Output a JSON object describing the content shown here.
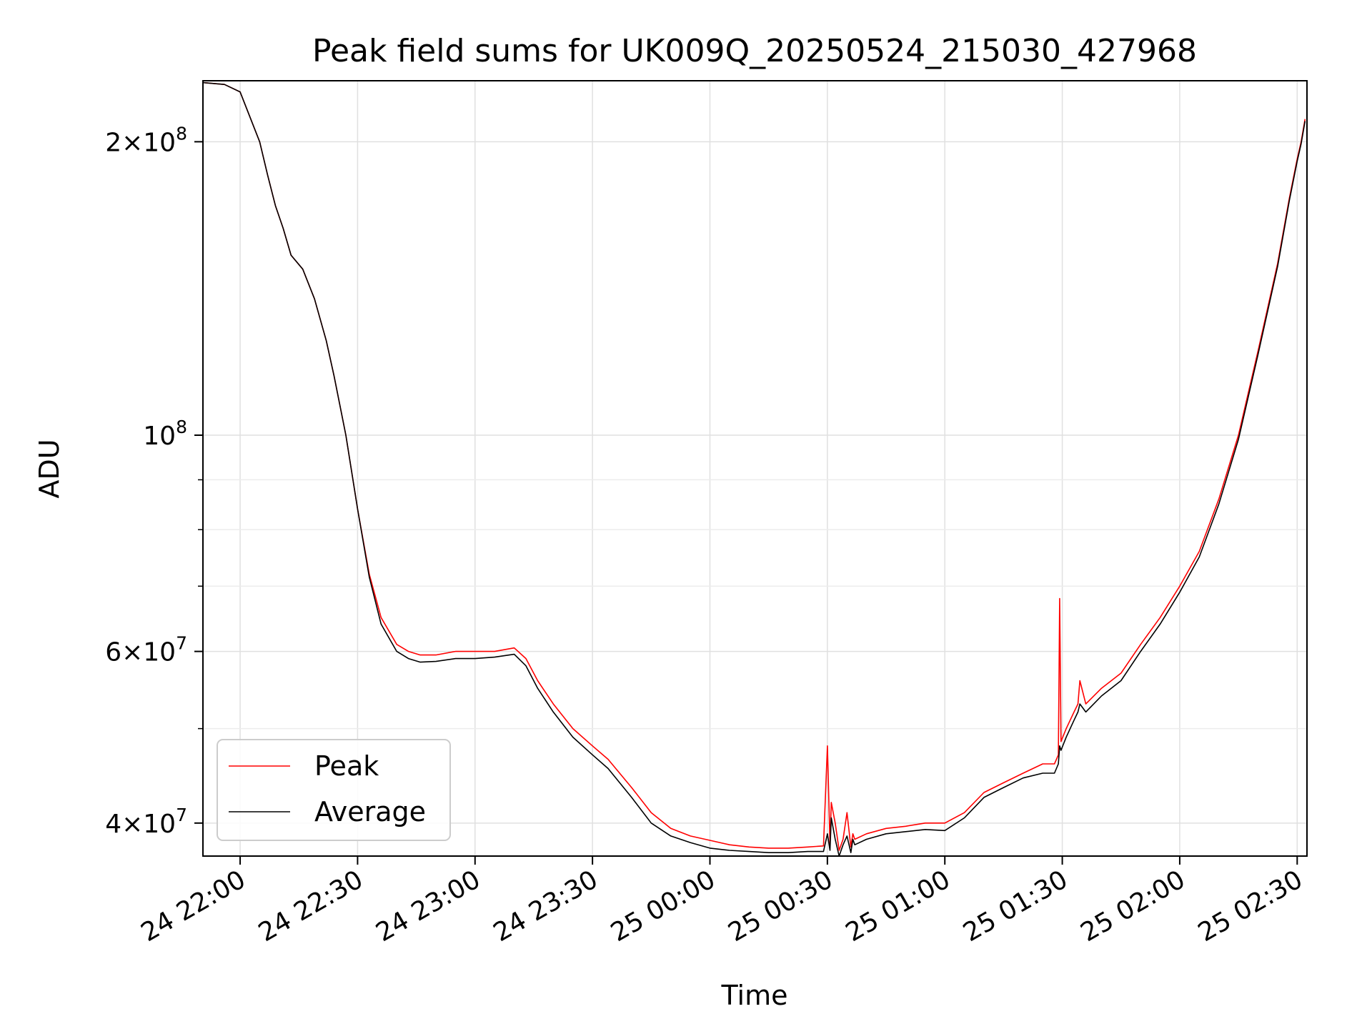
{
  "chart_data": {
    "type": "line",
    "title": "Peak field sums for UK009Q_20250524_215030_427968",
    "xlabel": "Time",
    "ylabel": "ADU",
    "x_type": "datetime",
    "xlim": [
      "2025-05-24 21:50:30",
      "2025-05-25 02:32:30"
    ],
    "ylim": [
      37000000,
      231000000
    ],
    "yscale": "log",
    "grid": true,
    "legend": {
      "position": "lower-left"
    },
    "x_ticks": [
      {
        "label": "24 22:00",
        "value": "2025-05-24 22:00"
      },
      {
        "label": "24 22:30",
        "value": "2025-05-24 22:30"
      },
      {
        "label": "24 23:00",
        "value": "2025-05-24 23:00"
      },
      {
        "label": "24 23:30",
        "value": "2025-05-24 23:30"
      },
      {
        "label": "25 00:00",
        "value": "2025-05-25 00:00"
      },
      {
        "label": "25 00:30",
        "value": "2025-05-25 00:30"
      },
      {
        "label": "25 01:00",
        "value": "2025-05-25 01:00"
      },
      {
        "label": "25 01:30",
        "value": "2025-05-25 01:30"
      },
      {
        "label": "25 02:00",
        "value": "2025-05-25 02:00"
      },
      {
        "label": "25 02:30",
        "value": "2025-05-25 02:30"
      }
    ],
    "y_ticks": [
      {
        "mant": "4",
        "exp": "7",
        "value": 40000000
      },
      {
        "mant": "6",
        "exp": "7",
        "value": 60000000
      },
      {
        "mant": "",
        "exp": "8",
        "value": 100000000
      },
      {
        "mant": "2",
        "exp": "8",
        "value": 200000000
      }
    ],
    "y_minor_ticks": [
      50000000,
      70000000,
      80000000,
      90000000
    ],
    "series": [
      {
        "name": "Peak",
        "color": "#ff0000",
        "x": [
          "2025-05-24 21:50:30",
          "2025-05-24 21:56:00",
          "2025-05-24 22:00:00",
          "2025-05-24 22:05:00",
          "2025-05-24 22:07:00",
          "2025-05-24 22:09:00",
          "2025-05-24 22:11:00",
          "2025-05-24 22:13:00",
          "2025-05-24 22:16:00",
          "2025-05-24 22:19:00",
          "2025-05-24 22:22:00",
          "2025-05-24 22:24:00",
          "2025-05-24 22:27:00",
          "2025-05-24 22:30:00",
          "2025-05-24 22:33:00",
          "2025-05-24 22:36:00",
          "2025-05-24 22:40:00",
          "2025-05-24 22:43:00",
          "2025-05-24 22:46:00",
          "2025-05-24 22:50:00",
          "2025-05-24 22:55:00",
          "2025-05-24 23:00:00",
          "2025-05-24 23:05:00",
          "2025-05-24 23:10:00",
          "2025-05-24 23:13:00",
          "2025-05-24 23:16:00",
          "2025-05-24 23:20:00",
          "2025-05-24 23:25:00",
          "2025-05-24 23:30:00",
          "2025-05-24 23:34:00",
          "2025-05-24 23:40:00",
          "2025-05-24 23:45:00",
          "2025-05-24 23:50:00",
          "2025-05-24 23:55:00",
          "2025-05-25 00:00:00",
          "2025-05-25 00:05:00",
          "2025-05-25 00:10:00",
          "2025-05-25 00:15:00",
          "2025-05-25 00:20:00",
          "2025-05-25 00:25:00",
          "2025-05-25 00:29:00",
          "2025-05-25 00:30:00",
          "2025-05-25 00:30:40",
          "2025-05-25 00:31:00",
          "2025-05-25 00:32:00",
          "2025-05-25 00:33:00",
          "2025-05-25 00:34:00",
          "2025-05-25 00:35:00",
          "2025-05-25 00:36:00",
          "2025-05-25 00:36:30",
          "2025-05-25 00:37:00",
          "2025-05-25 00:40:00",
          "2025-05-25 00:45:00",
          "2025-05-25 00:50:00",
          "2025-05-25 00:55:00",
          "2025-05-25 01:00:00",
          "2025-05-25 01:05:00",
          "2025-05-25 01:10:00",
          "2025-05-25 01:15:00",
          "2025-05-25 01:20:00",
          "2025-05-25 01:25:00",
          "2025-05-25 01:28:00",
          "2025-05-25 01:29:00",
          "2025-05-25 01:29:20",
          "2025-05-25 01:29:40",
          "2025-05-25 01:31:00",
          "2025-05-25 01:33:00",
          "2025-05-25 01:34:00",
          "2025-05-25 01:34:30",
          "2025-05-25 01:36:00",
          "2025-05-25 01:40:00",
          "2025-05-25 01:45:00",
          "2025-05-25 01:50:00",
          "2025-05-25 01:55:00",
          "2025-05-25 02:00:00",
          "2025-05-25 02:05:00",
          "2025-05-25 02:10:00",
          "2025-05-25 02:15:00",
          "2025-05-25 02:20:00",
          "2025-05-25 02:25:00",
          "2025-05-25 02:28:00",
          "2025-05-25 02:30:00",
          "2025-05-25 02:31:00",
          "2025-05-25 02:32:00"
        ],
        "y": [
          230000000,
          229000000,
          225000000,
          200000000,
          185000000,
          172000000,
          163000000,
          153000000,
          148000000,
          138000000,
          125000000,
          115000000,
          100000000,
          84000000,
          72000000,
          65000000,
          61000000,
          60000000,
          59500000,
          59500000,
          60000000,
          60000000,
          60000000,
          60500000,
          59000000,
          56000000,
          53000000,
          50000000,
          48000000,
          46500000,
          43500000,
          41000000,
          39500000,
          38800000,
          38400000,
          38000000,
          37800000,
          37700000,
          37700000,
          37800000,
          37900000,
          48000000,
          38000000,
          42000000,
          40000000,
          37500000,
          38500000,
          41000000,
          37800000,
          39000000,
          38500000,
          39000000,
          39500000,
          39700000,
          40000000,
          40000000,
          41000000,
          43000000,
          44000000,
          45000000,
          46000000,
          46000000,
          47000000,
          68000000,
          48500000,
          50000000,
          52000000,
          53000000,
          56000000,
          53000000,
          55000000,
          57000000,
          61000000,
          65000000,
          70000000,
          76000000,
          86000000,
          100000000,
          122000000,
          150000000,
          175000000,
          192000000,
          200000000,
          211000000
        ]
      },
      {
        "name": "Average",
        "color": "#000000",
        "x": [
          "2025-05-24 21:50:30",
          "2025-05-24 21:56:00",
          "2025-05-24 22:00:00",
          "2025-05-24 22:05:00",
          "2025-05-24 22:07:00",
          "2025-05-24 22:09:00",
          "2025-05-24 22:11:00",
          "2025-05-24 22:13:00",
          "2025-05-24 22:16:00",
          "2025-05-24 22:19:00",
          "2025-05-24 22:22:00",
          "2025-05-24 22:24:00",
          "2025-05-24 22:27:00",
          "2025-05-24 22:30:00",
          "2025-05-24 22:33:00",
          "2025-05-24 22:36:00",
          "2025-05-24 22:40:00",
          "2025-05-24 22:43:00",
          "2025-05-24 22:46:00",
          "2025-05-24 22:50:00",
          "2025-05-24 22:55:00",
          "2025-05-24 23:00:00",
          "2025-05-24 23:05:00",
          "2025-05-24 23:10:00",
          "2025-05-24 23:13:00",
          "2025-05-24 23:16:00",
          "2025-05-24 23:20:00",
          "2025-05-24 23:25:00",
          "2025-05-24 23:30:00",
          "2025-05-24 23:34:00",
          "2025-05-24 23:40:00",
          "2025-05-24 23:45:00",
          "2025-05-24 23:50:00",
          "2025-05-24 23:55:00",
          "2025-05-25 00:00:00",
          "2025-05-25 00:05:00",
          "2025-05-25 00:10:00",
          "2025-05-25 00:15:00",
          "2025-05-25 00:20:00",
          "2025-05-25 00:25:00",
          "2025-05-25 00:29:00",
          "2025-05-25 00:30:00",
          "2025-05-25 00:30:40",
          "2025-05-25 00:31:00",
          "2025-05-25 00:32:00",
          "2025-05-25 00:33:00",
          "2025-05-25 00:34:00",
          "2025-05-25 00:35:00",
          "2025-05-25 00:36:00",
          "2025-05-25 00:36:30",
          "2025-05-25 00:37:00",
          "2025-05-25 00:40:00",
          "2025-05-25 00:45:00",
          "2025-05-25 00:50:00",
          "2025-05-25 00:55:00",
          "2025-05-25 01:00:00",
          "2025-05-25 01:05:00",
          "2025-05-25 01:10:00",
          "2025-05-25 01:15:00",
          "2025-05-25 01:20:00",
          "2025-05-25 01:25:00",
          "2025-05-25 01:28:00",
          "2025-05-25 01:29:00",
          "2025-05-25 01:29:20",
          "2025-05-25 01:29:40",
          "2025-05-25 01:31:00",
          "2025-05-25 01:33:00",
          "2025-05-25 01:34:00",
          "2025-05-25 01:34:30",
          "2025-05-25 01:36:00",
          "2025-05-25 01:40:00",
          "2025-05-25 01:45:00",
          "2025-05-25 01:50:00",
          "2025-05-25 01:55:00",
          "2025-05-25 02:00:00",
          "2025-05-25 02:05:00",
          "2025-05-25 02:10:00",
          "2025-05-25 02:15:00",
          "2025-05-25 02:20:00",
          "2025-05-25 02:25:00",
          "2025-05-25 02:28:00",
          "2025-05-25 02:30:00",
          "2025-05-25 02:31:00",
          "2025-05-25 02:32:00"
        ],
        "y": [
          230000000,
          229000000,
          225000000,
          200000000,
          185000000,
          172000000,
          163000000,
          153000000,
          148000000,
          138000000,
          125000000,
          115000000,
          100000000,
          84000000,
          71500000,
          64000000,
          60000000,
          59000000,
          58500000,
          58600000,
          59000000,
          59000000,
          59200000,
          59600000,
          58000000,
          55000000,
          52000000,
          49000000,
          47000000,
          45500000,
          42500000,
          40000000,
          38800000,
          38200000,
          37700000,
          37500000,
          37400000,
          37300000,
          37300000,
          37400000,
          37400000,
          39000000,
          37500000,
          40500000,
          38500000,
          37000000,
          38000000,
          38800000,
          37300000,
          38500000,
          38000000,
          38500000,
          39000000,
          39200000,
          39400000,
          39300000,
          40500000,
          42500000,
          43500000,
          44500000,
          45000000,
          45000000,
          46000000,
          48000000,
          47500000,
          49000000,
          51000000,
          52000000,
          53000000,
          52000000,
          54000000,
          56000000,
          60000000,
          64000000,
          69000000,
          75000000,
          85000000,
          99000000,
          121000000,
          149000000,
          174000000,
          191000000,
          199000000,
          210000000
        ]
      }
    ]
  }
}
